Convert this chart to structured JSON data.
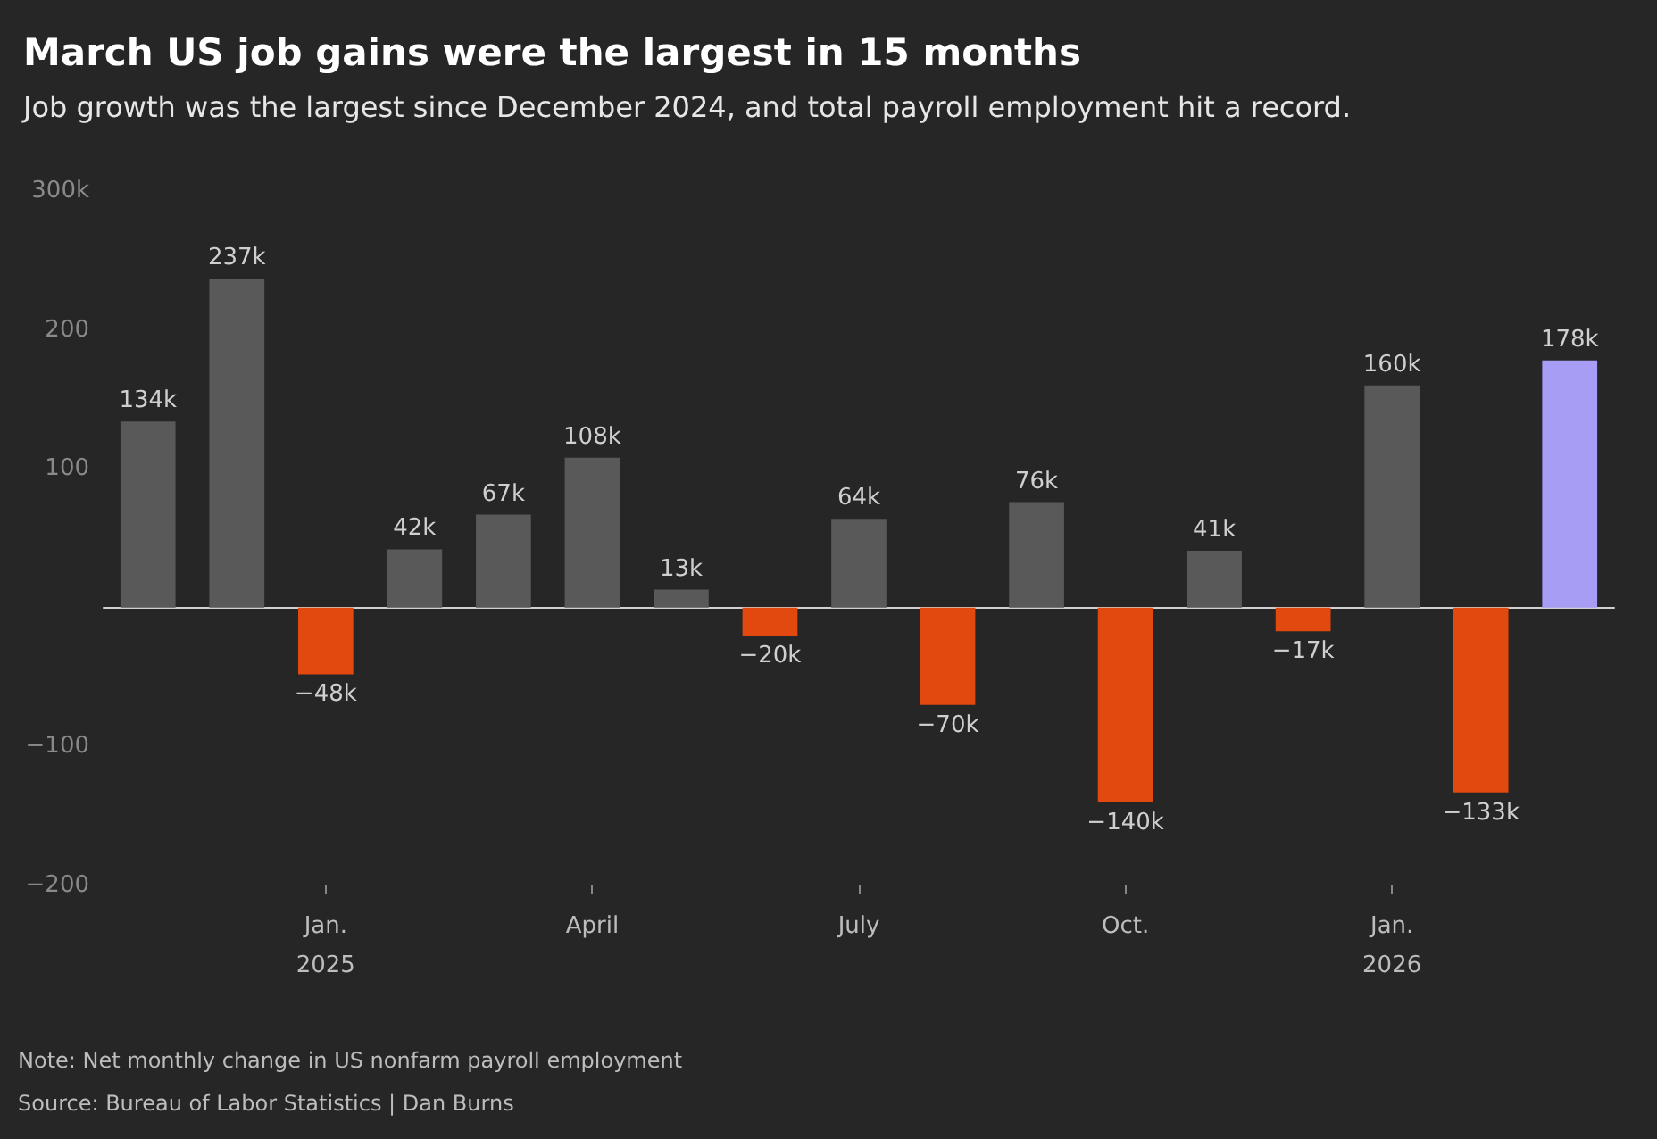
{
  "chart_data": {
    "type": "bar",
    "title": "March US job gains were the largest in 15 months",
    "subtitle": "Job growth was the largest since December 2024, and total payroll employment hit a record.",
    "categories": [
      null,
      null,
      "Jan.\n2025",
      null,
      null,
      "April",
      null,
      null,
      "July",
      null,
      null,
      "Oct.",
      null,
      null,
      "Jan.\n2026",
      null,
      null
    ],
    "values": [
      134,
      237,
      -48,
      42,
      67,
      108,
      13,
      -20,
      64,
      -70,
      76,
      -140,
      41,
      -17,
      160,
      -133,
      178
    ],
    "value_labels": [
      "134k",
      "237k",
      "−48k",
      "42k",
      "67k",
      "108k",
      "13k",
      "−20k",
      "64k",
      "−70k",
      "76k",
      "−140k",
      "41k",
      "−17k",
      "160k",
      "−133k",
      "178k"
    ],
    "colors": [
      "#595959",
      "#595959",
      "#e2490f",
      "#595959",
      "#595959",
      "#595959",
      "#595959",
      "#e2490f",
      "#595959",
      "#e2490f",
      "#595959",
      "#e2490f",
      "#595959",
      "#e2490f",
      "#595959",
      "#e2490f",
      "#a79df5"
    ],
    "ylim": [
      -200,
      300
    ],
    "yticks": [
      {
        "value": -200,
        "label": "−200"
      },
      {
        "value": -100,
        "label": "−100"
      },
      100,
      200,
      {
        "value": 300,
        "label": "300k"
      }
    ],
    "annotations": [
      "Note: Net monthly change in US nonfarm payroll employment",
      "Source: Bureau of Labor Statistics | Dan Burns"
    ]
  }
}
